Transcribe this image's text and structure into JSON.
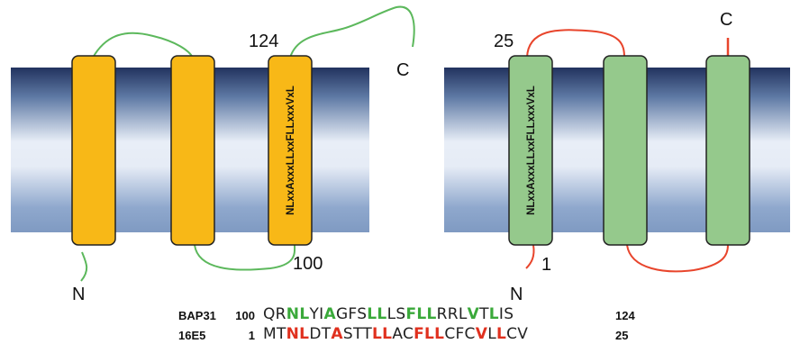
{
  "colors": {
    "membrane_dark": "#22335f",
    "membrane_light": "#e8eef7",
    "helix_orange": "#f8b817",
    "helix_green": "#95c98c",
    "loop_green": "#5cb85c",
    "loop_red": "#e8452c",
    "highlight_green": "#3aa93a",
    "highlight_red": "#e0301e"
  },
  "left_protein": {
    "helix_motif": "NLxxAxxxLLxxFLLxxxVxL",
    "label_n": "N",
    "label_c": "C",
    "label_start": "124",
    "label_end": "100"
  },
  "right_protein": {
    "helix_motif": "NLxxAxxxLLxxFLLxxxVxL",
    "label_n": "N",
    "label_c": "C",
    "label_top": "25",
    "label_bottom": "1"
  },
  "alignment": [
    {
      "name": "BAP31",
      "start": "100",
      "end": "124",
      "highlight": "green",
      "segments": [
        {
          "t": "QR",
          "h": false
        },
        {
          "t": "NL",
          "h": true
        },
        {
          "t": "YI",
          "h": false
        },
        {
          "t": "A",
          "h": true
        },
        {
          "t": "GFS",
          "h": false
        },
        {
          "t": "LL",
          "h": true
        },
        {
          "t": "LS",
          "h": false
        },
        {
          "t": "FLL",
          "h": true
        },
        {
          "t": "RRL",
          "h": false
        },
        {
          "t": "V",
          "h": true
        },
        {
          "t": "T",
          "h": false
        },
        {
          "t": "L",
          "h": true
        },
        {
          "t": "IS",
          "h": false
        }
      ]
    },
    {
      "name": "16E5",
      "start": "1",
      "end": "25",
      "highlight": "red",
      "segments": [
        {
          "t": "MT",
          "h": false
        },
        {
          "t": "NL",
          "h": true
        },
        {
          "t": "DT",
          "h": false
        },
        {
          "t": "A",
          "h": true
        },
        {
          "t": "STT",
          "h": false
        },
        {
          "t": "LL",
          "h": true
        },
        {
          "t": "AC",
          "h": false
        },
        {
          "t": "FLL",
          "h": true
        },
        {
          "t": "CFC",
          "h": false
        },
        {
          "t": "V",
          "h": true
        },
        {
          "t": "L",
          "h": false
        },
        {
          "t": "L",
          "h": true
        },
        {
          "t": "CV",
          "h": false
        }
      ]
    }
  ]
}
